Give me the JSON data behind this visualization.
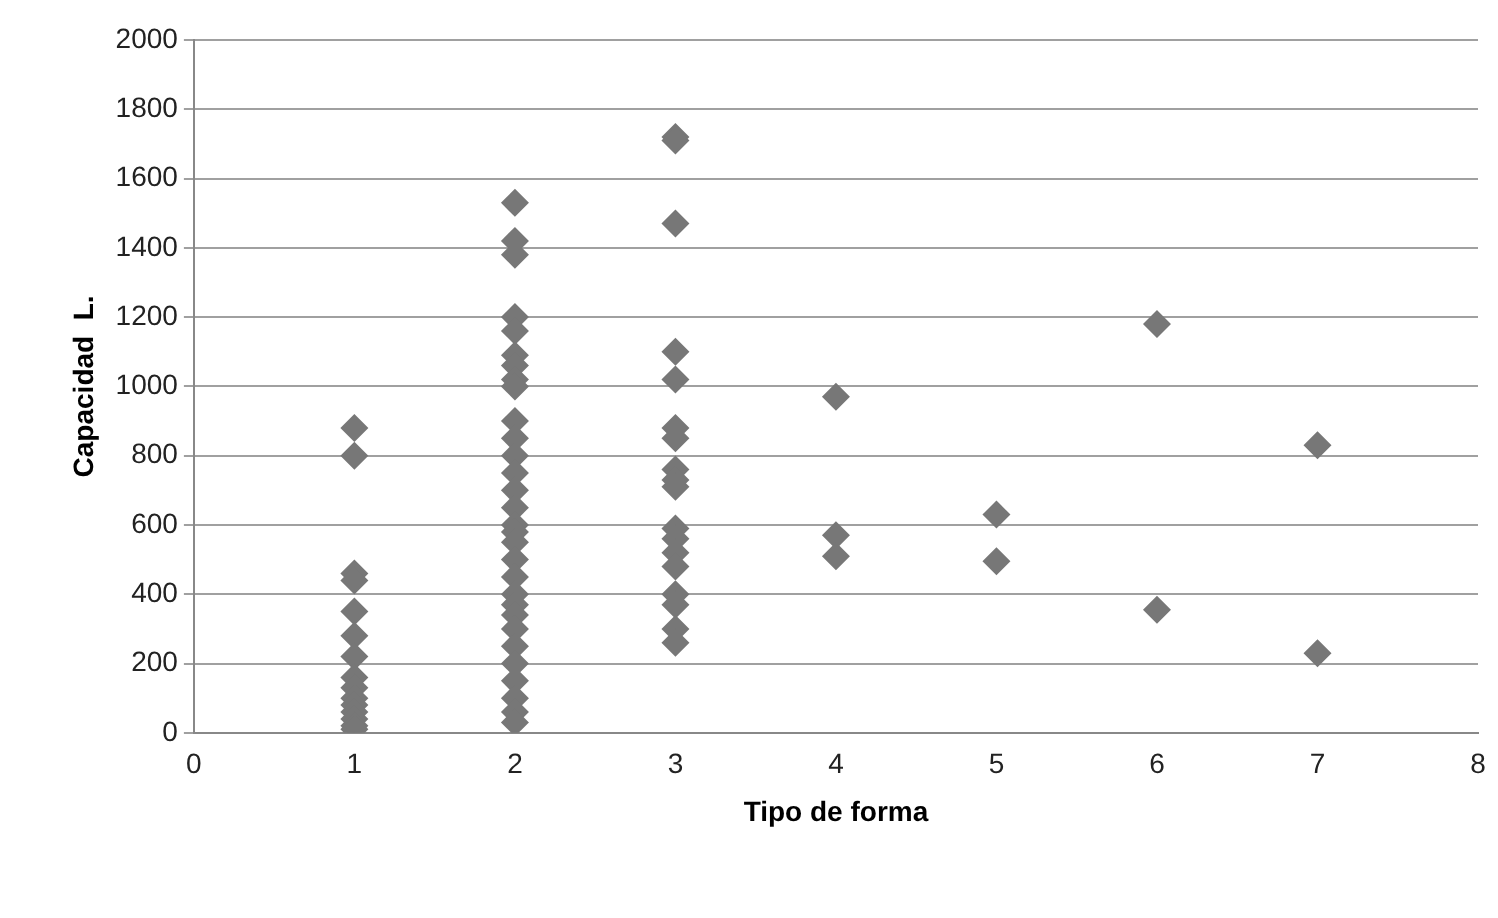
{
  "chart_data": {
    "type": "scatter",
    "xlabel": "Tipo de forma",
    "ylabel": "Capacidad  L.",
    "series": [
      {
        "color": "#777777",
        "x": [
          1,
          1,
          1,
          1,
          1,
          1,
          1,
          1,
          1,
          1,
          1,
          1,
          1,
          1,
          1,
          2,
          2,
          2,
          2,
          2,
          2,
          2,
          2,
          2,
          2,
          2,
          2,
          2,
          2,
          2,
          2,
          2,
          2,
          2,
          2,
          2,
          2,
          2,
          2,
          2,
          2,
          2,
          2,
          2,
          2,
          3,
          3,
          3,
          3,
          3,
          3,
          3,
          3,
          3,
          3,
          3,
          3,
          3,
          3,
          3,
          3,
          3,
          3,
          4,
          4,
          4,
          5,
          5,
          6,
          6,
          7,
          7
        ],
        "values": [
          880,
          800,
          460,
          440,
          350,
          280,
          220,
          160,
          130,
          100,
          80,
          60,
          40,
          20,
          10,
          1530,
          1420,
          1380,
          1200,
          1160,
          1090,
          1060,
          1020,
          1000,
          900,
          850,
          800,
          750,
          700,
          650,
          600,
          580,
          550,
          500,
          450,
          400,
          370,
          340,
          300,
          250,
          200,
          150,
          100,
          60,
          30,
          1720,
          1710,
          1470,
          1100,
          1020,
          880,
          850,
          760,
          730,
          710,
          590,
          560,
          520,
          480,
          400,
          370,
          300,
          260,
          970,
          570,
          510,
          630,
          495,
          1180,
          355,
          830,
          230
        ]
      }
    ],
    "xlim": [
      0,
      8
    ],
    "xticks": [
      0,
      1,
      2,
      3,
      4,
      5,
      6,
      7,
      8
    ],
    "ylim": [
      0,
      2000
    ],
    "yticks": [
      0,
      200,
      400,
      600,
      800,
      1000,
      1200,
      1400,
      1600,
      1800,
      2000
    ],
    "grid": "y",
    "marker": "diamond",
    "legend": false
  }
}
